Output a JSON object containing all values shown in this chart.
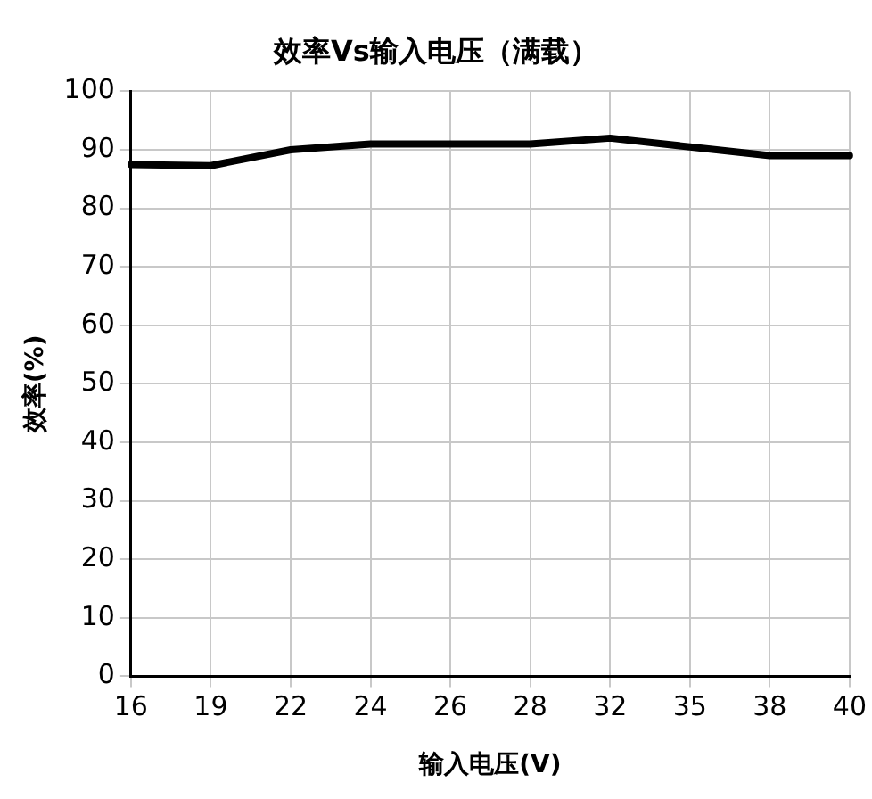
{
  "chart_data": {
    "type": "line",
    "title": "效率Vs输入电压（满载）",
    "xlabel": "输入电压(V)",
    "ylabel": "效率(%)",
    "categories": [
      "16",
      "19",
      "22",
      "24",
      "26",
      "28",
      "32",
      "35",
      "38",
      "40"
    ],
    "series": [
      {
        "color": "#000000",
        "values": [
          87.5,
          87.3,
          90,
          91,
          91,
          91,
          92,
          90.5,
          89,
          89
        ]
      }
    ],
    "ylim": [
      0,
      100
    ],
    "yticks": [
      0,
      10,
      20,
      30,
      40,
      50,
      60,
      70,
      80,
      90,
      100
    ],
    "grid": true,
    "legend": false,
    "marker": "none",
    "line_style": "solid"
  }
}
